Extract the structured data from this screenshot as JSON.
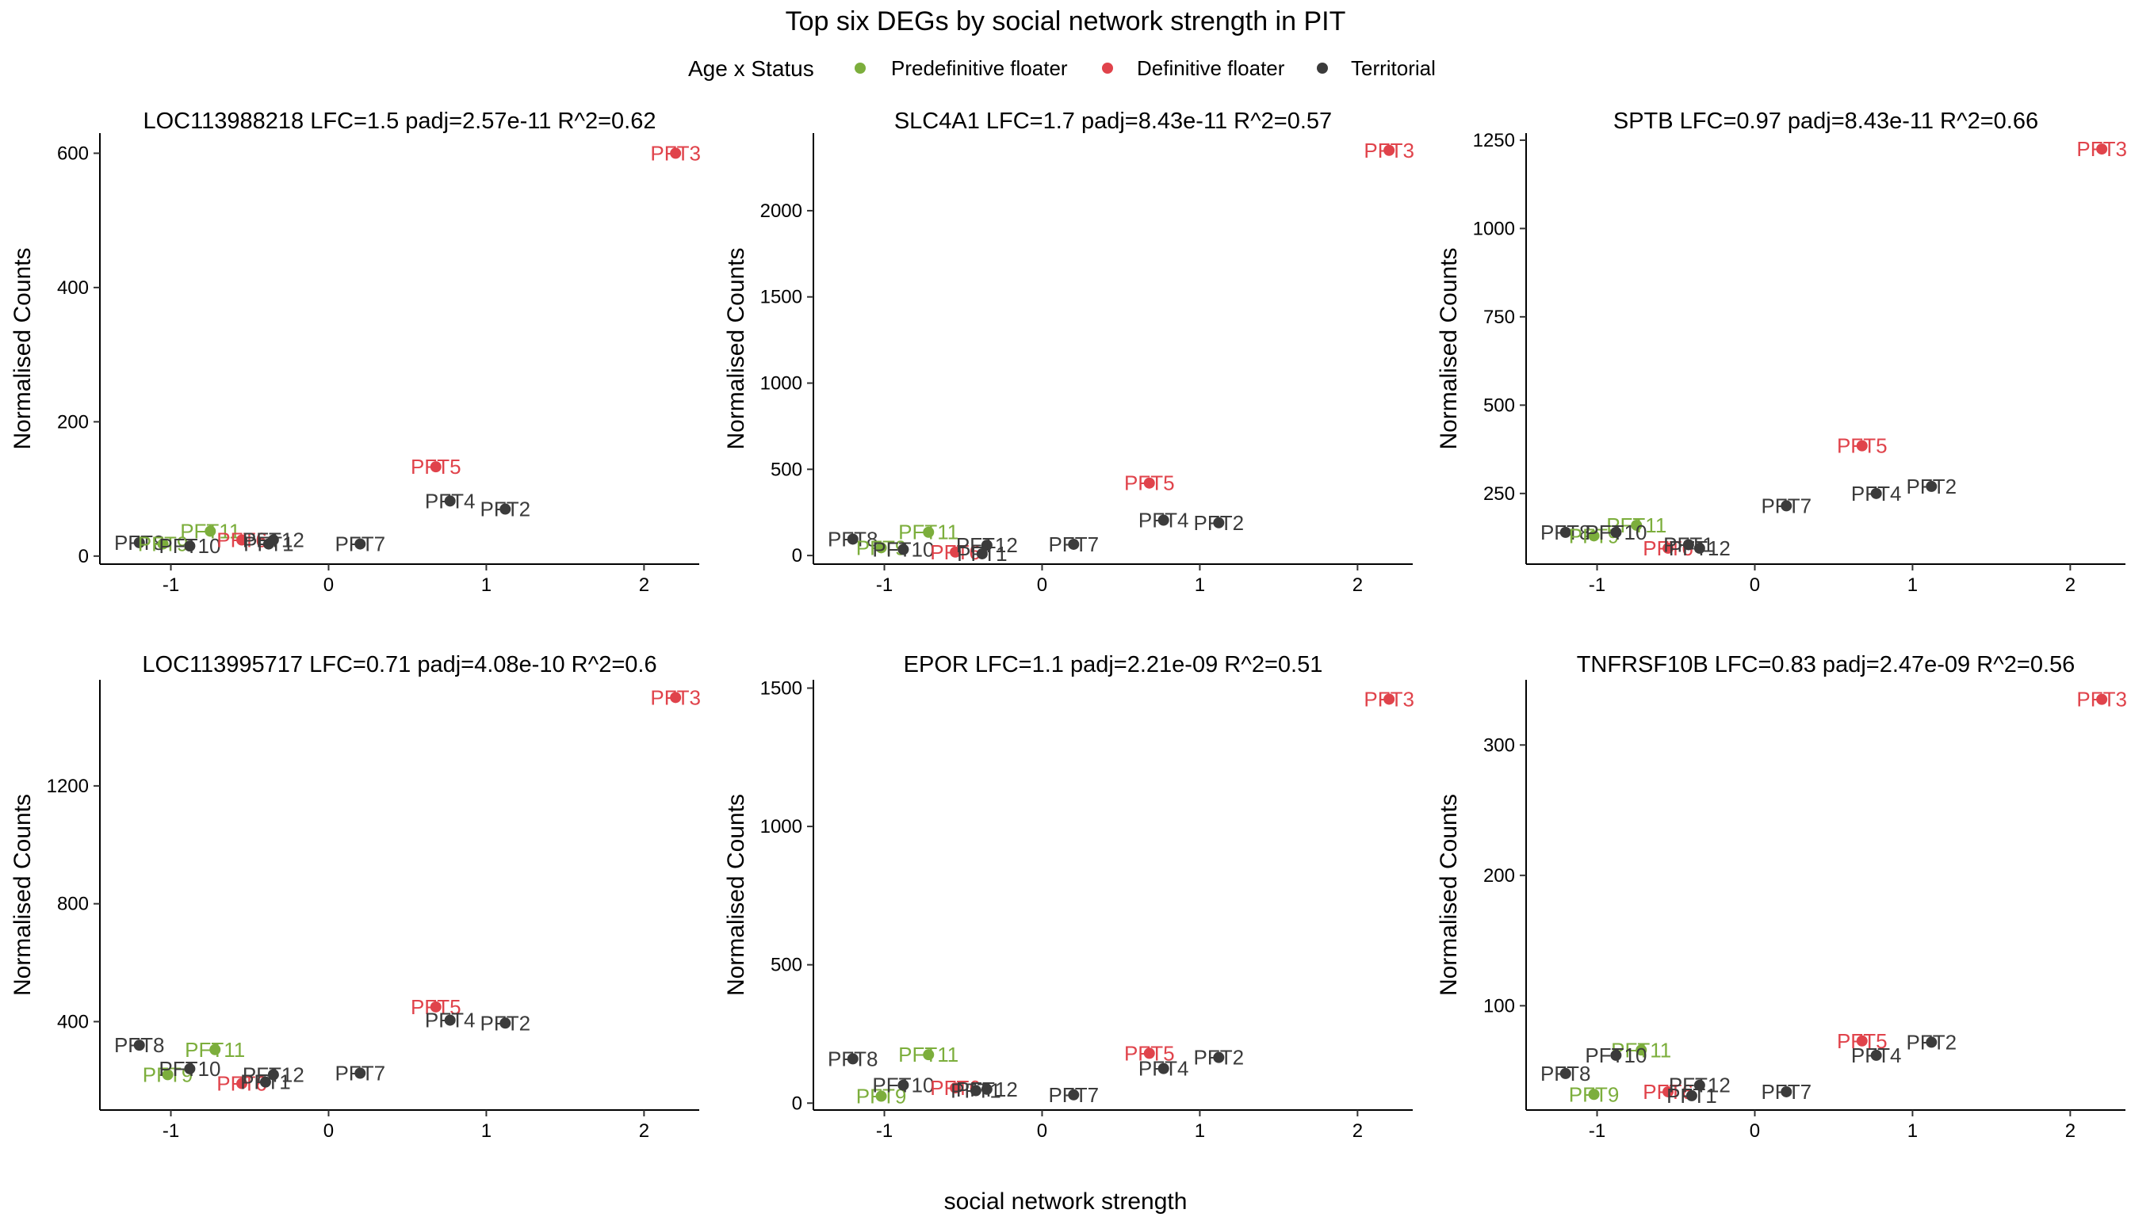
{
  "title": "Top six DEGs by social network strength in PIT",
  "legend": {
    "title": "Age x Status",
    "entries": [
      {
        "label": "Predefinitive floater",
        "color": "#7CAE3C"
      },
      {
        "label": "Definitive floater",
        "color": "#E0434B"
      },
      {
        "label": "Territorial",
        "color": "#3B3B3B"
      }
    ]
  },
  "xlabel": "social network strength",
  "ylabel": "Normalised Counts",
  "chart_data": [
    {
      "type": "scatter",
      "title": "LOC113988218 LFC=1.5 padj=2.57e-11 R^2=0.62",
      "xlim": [
        -1.45,
        2.35
      ],
      "ylim": [
        -12,
        630
      ],
      "xticks": [
        -1,
        0,
        1,
        2
      ],
      "yticks": [
        0,
        200,
        400,
        600
      ],
      "points": [
        {
          "label": "PFT3",
          "x": 2.2,
          "y": 600,
          "group": 1
        },
        {
          "label": "PFT5",
          "x": 0.68,
          "y": 133,
          "group": 1
        },
        {
          "label": "PFT4",
          "x": 0.77,
          "y": 82,
          "group": 2
        },
        {
          "label": "PFT2",
          "x": 1.12,
          "y": 70,
          "group": 2
        },
        {
          "label": "PFT7",
          "x": 0.2,
          "y": 18,
          "group": 2
        },
        {
          "label": "PFT11",
          "x": -0.75,
          "y": 37,
          "group": 0
        },
        {
          "label": "PFT8",
          "x": -1.2,
          "y": 20,
          "group": 2
        },
        {
          "label": "PFT9",
          "x": -1.05,
          "y": 18,
          "group": 0
        },
        {
          "label": "PFT10",
          "x": -0.88,
          "y": 15,
          "group": 2
        },
        {
          "label": "PFT6",
          "x": -0.55,
          "y": 24,
          "group": 1
        },
        {
          "label": "PFT12",
          "x": -0.35,
          "y": 24,
          "group": 2
        },
        {
          "label": "PFT1",
          "x": -0.38,
          "y": 18,
          "group": 2
        }
      ]
    },
    {
      "type": "scatter",
      "title": "SLC4A1 LFC=1.7 padj=8.43e-11 R^2=0.57",
      "xlim": [
        -1.45,
        2.35
      ],
      "ylim": [
        -50,
        2450
      ],
      "xticks": [
        -1,
        0,
        1,
        2
      ],
      "yticks": [
        0,
        500,
        1000,
        1500,
        2000
      ],
      "points": [
        {
          "label": "PFT3",
          "x": 2.2,
          "y": 2350,
          "group": 1
        },
        {
          "label": "PFT5",
          "x": 0.68,
          "y": 420,
          "group": 1
        },
        {
          "label": "PFT4",
          "x": 0.77,
          "y": 205,
          "group": 2
        },
        {
          "label": "PFT2",
          "x": 1.12,
          "y": 190,
          "group": 2
        },
        {
          "label": "PFT7",
          "x": 0.2,
          "y": 65,
          "group": 2
        },
        {
          "label": "PFT11",
          "x": -0.72,
          "y": 135,
          "group": 0
        },
        {
          "label": "PFT8",
          "x": -1.2,
          "y": 95,
          "group": 2
        },
        {
          "label": "PFT9",
          "x": -1.02,
          "y": 45,
          "group": 0
        },
        {
          "label": "PFT10",
          "x": -0.88,
          "y": 35,
          "group": 2
        },
        {
          "label": "PFT6",
          "x": -0.55,
          "y": 20,
          "group": 1
        },
        {
          "label": "PFT12",
          "x": -0.35,
          "y": 60,
          "group": 2
        },
        {
          "label": "PFT1",
          "x": -0.38,
          "y": 10,
          "group": 2
        }
      ]
    },
    {
      "type": "scatter",
      "title": "SPTB LFC=0.97 padj=8.43e-11 R^2=0.66",
      "xlim": [
        -1.45,
        2.35
      ],
      "ylim": [
        50,
        1270
      ],
      "xticks": [
        -1,
        0,
        1,
        2
      ],
      "yticks": [
        250,
        500,
        750,
        1000,
        1250
      ],
      "points": [
        {
          "label": "PFT3",
          "x": 2.2,
          "y": 1225,
          "group": 1
        },
        {
          "label": "PFT5",
          "x": 0.68,
          "y": 385,
          "group": 1
        },
        {
          "label": "PFT4",
          "x": 0.77,
          "y": 250,
          "group": 2
        },
        {
          "label": "PFT2",
          "x": 1.12,
          "y": 270,
          "group": 2
        },
        {
          "label": "PFT7",
          "x": 0.2,
          "y": 215,
          "group": 2
        },
        {
          "label": "PFT11",
          "x": -0.75,
          "y": 160,
          "group": 0
        },
        {
          "label": "PFT8",
          "x": -1.2,
          "y": 140,
          "group": 2
        },
        {
          "label": "PFT9",
          "x": -1.02,
          "y": 130,
          "group": 0
        },
        {
          "label": "PFT10",
          "x": -0.88,
          "y": 140,
          "group": 2
        },
        {
          "label": "PFT6",
          "x": -0.55,
          "y": 95,
          "group": 1
        },
        {
          "label": "PFT12",
          "x": -0.35,
          "y": 95,
          "group": 2
        },
        {
          "label": "PFT1",
          "x": -0.42,
          "y": 105,
          "group": 2
        }
      ]
    },
    {
      "type": "scatter",
      "title": "LOC113995717 LFC=0.71 padj=4.08e-10 R^2=0.6",
      "xlim": [
        -1.45,
        2.35
      ],
      "ylim": [
        100,
        1560
      ],
      "xticks": [
        -1,
        0,
        1,
        2
      ],
      "yticks": [
        400,
        800,
        1200
      ],
      "points": [
        {
          "label": "PFT3",
          "x": 2.2,
          "y": 1500,
          "group": 1
        },
        {
          "label": "PFT5",
          "x": 0.68,
          "y": 450,
          "group": 1
        },
        {
          "label": "PFT4",
          "x": 0.77,
          "y": 405,
          "group": 2
        },
        {
          "label": "PFT2",
          "x": 1.12,
          "y": 395,
          "group": 2
        },
        {
          "label": "PFT7",
          "x": 0.2,
          "y": 225,
          "group": 2
        },
        {
          "label": "PFT11",
          "x": -0.72,
          "y": 305,
          "group": 0
        },
        {
          "label": "PFT8",
          "x": -1.2,
          "y": 320,
          "group": 2
        },
        {
          "label": "PFT9",
          "x": -1.02,
          "y": 220,
          "group": 0
        },
        {
          "label": "PFT10",
          "x": -0.88,
          "y": 240,
          "group": 2
        },
        {
          "label": "PFT6",
          "x": -0.55,
          "y": 190,
          "group": 1
        },
        {
          "label": "PFT12",
          "x": -0.35,
          "y": 220,
          "group": 2
        },
        {
          "label": "PFT1",
          "x": -0.4,
          "y": 195,
          "group": 2
        }
      ]
    },
    {
      "type": "scatter",
      "title": "EPOR LFC=1.1 padj=2.21e-09 R^2=0.51",
      "xlim": [
        -1.45,
        2.35
      ],
      "ylim": [
        -25,
        1530
      ],
      "xticks": [
        -1,
        0,
        1,
        2
      ],
      "yticks": [
        0,
        500,
        1000,
        1500
      ],
      "points": [
        {
          "label": "PFT3",
          "x": 2.2,
          "y": 1460,
          "group": 1
        },
        {
          "label": "PFT5",
          "x": 0.68,
          "y": 180,
          "group": 1
        },
        {
          "label": "PFT4",
          "x": 0.77,
          "y": 125,
          "group": 2
        },
        {
          "label": "PFT2",
          "x": 1.12,
          "y": 165,
          "group": 2
        },
        {
          "label": "PFT7",
          "x": 0.2,
          "y": 30,
          "group": 2
        },
        {
          "label": "PFT11",
          "x": -0.72,
          "y": 175,
          "group": 0
        },
        {
          "label": "PFT8",
          "x": -1.2,
          "y": 160,
          "group": 2
        },
        {
          "label": "PFT9",
          "x": -1.02,
          "y": 25,
          "group": 0
        },
        {
          "label": "PFT10",
          "x": -0.88,
          "y": 65,
          "group": 2
        },
        {
          "label": "PFT6",
          "x": -0.55,
          "y": 55,
          "group": 1
        },
        {
          "label": "PFT12",
          "x": -0.35,
          "y": 50,
          "group": 2
        },
        {
          "label": "PFT1",
          "x": -0.42,
          "y": 45,
          "group": 2
        }
      ]
    },
    {
      "type": "scatter",
      "title": "TNFRSF10B LFC=0.83 padj=2.47e-09 R^2=0.56",
      "xlim": [
        -1.45,
        2.35
      ],
      "ylim": [
        20,
        350
      ],
      "xticks": [
        -1,
        0,
        1,
        2
      ],
      "yticks": [
        100,
        200,
        300
      ],
      "points": [
        {
          "label": "PFT3",
          "x": 2.2,
          "y": 335,
          "group": 1
        },
        {
          "label": "PFT5",
          "x": 0.68,
          "y": 73,
          "group": 1
        },
        {
          "label": "PFT4",
          "x": 0.77,
          "y": 62,
          "group": 2
        },
        {
          "label": "PFT2",
          "x": 1.12,
          "y": 72,
          "group": 2
        },
        {
          "label": "PFT7",
          "x": 0.2,
          "y": 34,
          "group": 2
        },
        {
          "label": "PFT11",
          "x": -0.72,
          "y": 66,
          "group": 0
        },
        {
          "label": "PFT8",
          "x": -1.2,
          "y": 48,
          "group": 2
        },
        {
          "label": "PFT9",
          "x": -1.02,
          "y": 32,
          "group": 0
        },
        {
          "label": "PFT10",
          "x": -0.88,
          "y": 62,
          "group": 2
        },
        {
          "label": "PFT6",
          "x": -0.55,
          "y": 34,
          "group": 1
        },
        {
          "label": "PFT12",
          "x": -0.35,
          "y": 39,
          "group": 2
        },
        {
          "label": "PFT1",
          "x": -0.4,
          "y": 31,
          "group": 2
        }
      ]
    }
  ]
}
